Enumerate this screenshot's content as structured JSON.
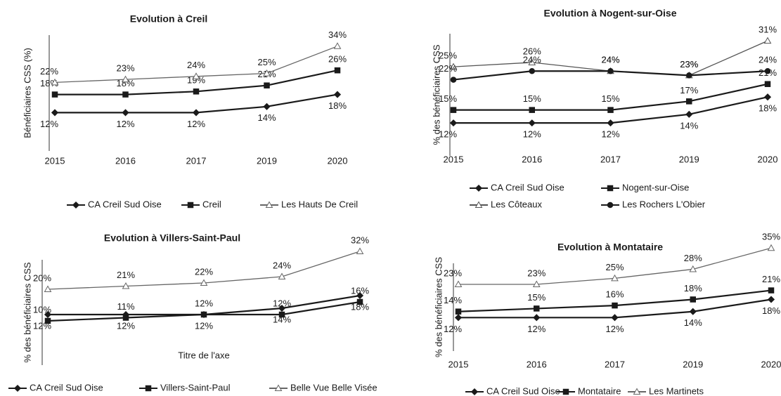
{
  "chart_data": [
    {
      "type": "line",
      "title": "Evolution à Creil",
      "ylabel": "Bénéficiaires CSS (%)",
      "categories": [
        "2015",
        "2016",
        "2017",
        "2019",
        "2020"
      ],
      "ylim": [
        0,
        40
      ],
      "legend": "bottom",
      "series": [
        {
          "name": "CA Creil Sud Oise",
          "color": "#1a1a1a",
          "marker": "diamond",
          "values": [
            12,
            12,
            12,
            14,
            18
          ],
          "value_labels": [
            "12%",
            "12%",
            "12%",
            "14%",
            "18%"
          ]
        },
        {
          "name": "Creil",
          "color": "#1a1a1a",
          "marker": "square",
          "values": [
            18,
            18,
            19,
            21,
            26
          ],
          "value_labels": [
            "18%",
            "18%",
            "19%",
            "21%",
            "26%"
          ]
        },
        {
          "name": "Les Hauts De Creil",
          "color": "#666666",
          "marker": "triangle",
          "values": [
            22,
            23,
            24,
            25,
            34
          ],
          "value_labels": [
            "22%",
            "23%",
            "24%",
            "25%",
            "34%"
          ]
        }
      ]
    },
    {
      "type": "line",
      "title": "Evolution à Nogent-sur-Oise",
      "ylabel": "% des bénéficiaires CSS",
      "categories": [
        "2015",
        "2016",
        "2017",
        "2019",
        "2020"
      ],
      "ylim": [
        0,
        32
      ],
      "legend": "bottom",
      "series": [
        {
          "name": "CA Creil Sud Oise",
          "color": "#1a1a1a",
          "marker": "diamond",
          "values": [
            12,
            12,
            12,
            14,
            18
          ],
          "value_labels": [
            "12%",
            "12%",
            "12%",
            "14%",
            "18%"
          ]
        },
        {
          "name": "Nogent-sur-Oise",
          "color": "#1a1a1a",
          "marker": "square",
          "values": [
            15,
            15,
            15,
            17,
            21
          ],
          "value_labels": [
            "15%",
            "15%",
            "15%",
            "17%",
            "21%"
          ]
        },
        {
          "name": "Les Côteaux",
          "color": "#555555",
          "marker": "triangle",
          "values": [
            25,
            26,
            24,
            23,
            31
          ],
          "value_labels": [
            "25%",
            "26%",
            "24%",
            "23%",
            "31%"
          ]
        },
        {
          "name": "Les Rochers L'Obier",
          "color": "#1a1a1a",
          "marker": "circle",
          "values": [
            22,
            24,
            24,
            23,
            24
          ],
          "value_labels": [
            "22%",
            "24%",
            "24%",
            "23%",
            "24%"
          ]
        }
      ]
    },
    {
      "type": "line",
      "title": "Evolution à Villers-Saint-Paul",
      "ylabel": "% des bénéficiaires CSS",
      "xlabel": "Titre de l'axe",
      "categories": [
        null,
        null,
        null,
        null,
        null
      ],
      "ylim": [
        0,
        34
      ],
      "legend": "bottom",
      "series": [
        {
          "name": "CA Creil Sud Oise",
          "color": "#1a1a1a",
          "marker": "diamond",
          "values": [
            12,
            12,
            12,
            14,
            18
          ],
          "value_labels": [
            "12%",
            "12%",
            "12%",
            "14%",
            "18%"
          ]
        },
        {
          "name": "Villers-Saint-Paul",
          "color": "#1a1a1a",
          "marker": "square",
          "values": [
            10,
            11,
            12,
            12,
            16
          ],
          "value_labels": [
            "10%",
            "11%",
            "12%",
            "12%",
            "16%"
          ]
        },
        {
          "name": "Belle Vue Belle Visée",
          "color": "#666666",
          "marker": "triangle",
          "values": [
            20,
            21,
            22,
            24,
            32
          ],
          "value_labels": [
            "20%",
            "21%",
            "22%",
            "24%",
            "32%"
          ]
        }
      ]
    },
    {
      "type": "line",
      "title": "Evolution à Montataire",
      "ylabel": "% des bénéficiaires CSS",
      "categories": [
        "2015",
        "2016",
        "2017",
        "2019",
        "2020"
      ],
      "ylim": [
        0,
        36
      ],
      "legend": "bottom",
      "series": [
        {
          "name": "CA Creil Sud Oise",
          "color": "#1a1a1a",
          "marker": "diamond",
          "values": [
            12,
            12,
            12,
            14,
            18
          ],
          "value_labels": [
            "12%",
            "12%",
            "12%",
            "14%",
            "18%"
          ]
        },
        {
          "name": "Montataire",
          "color": "#1a1a1a",
          "marker": "square",
          "values": [
            14,
            15,
            16,
            18,
            21
          ],
          "value_labels": [
            "14%",
            "15%",
            "16%",
            "18%",
            "21%"
          ]
        },
        {
          "name": "Les Martinets",
          "color": "#666666",
          "marker": "triangle",
          "values": [
            23,
            23,
            25,
            28,
            35
          ],
          "value_labels": [
            "23%",
            "23%",
            "25%",
            "28%",
            "35%"
          ]
        }
      ]
    }
  ]
}
